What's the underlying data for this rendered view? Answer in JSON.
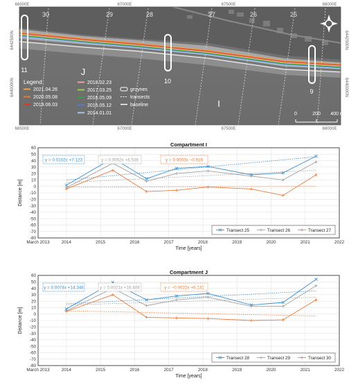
{
  "map": {
    "top_ticks": [
      "66500E",
      "67000E",
      "67500E",
      "68000E"
    ],
    "bottom_ticks": [
      "66500E",
      "67000E",
      "67500E",
      "68000E"
    ],
    "left_ticks": [
      "6442500N",
      "6440000N"
    ],
    "right_ticks": [
      "6442500N",
      "6440000N"
    ],
    "transect_labels": [
      "30",
      "29",
      "28",
      "27",
      "26",
      "25"
    ],
    "groyne_labels": [
      "11",
      "10",
      "9"
    ],
    "compartment_labels": [
      "J",
      "I"
    ],
    "legend_title": "Legend",
    "legend_col1": [
      {
        "label": "2021.04.26",
        "color": "#f0a34a"
      },
      {
        "label": "2020.05.08",
        "color": "#e8793a"
      },
      {
        "label": "2019.06.03",
        "color": "#d6392a"
      }
    ],
    "legend_col2": [
      {
        "label": "2018.02.23",
        "color": "#f0a0a8"
      },
      {
        "label": "2017.03.25",
        "color": "#9bd04a"
      },
      {
        "label": "2016.05.09",
        "color": "#3aa038"
      },
      {
        "label": "2015.05.12",
        "color": "#4f7fd0"
      },
      {
        "label": "2014.01.01",
        "color": "#a7c5ef"
      }
    ],
    "legend_col3": [
      {
        "label": "groynes",
        "kind": "groyne"
      },
      {
        "label": "transects",
        "kind": "transect"
      },
      {
        "label": "baseline",
        "kind": "baseline"
      }
    ],
    "scale_labels": [
      "0",
      "200",
      "400 m"
    ],
    "compass": "compass-icon"
  },
  "chart_data": [
    {
      "type": "line",
      "title": "Compartment I",
      "xlabel": "Time [years]",
      "ylabel": "Distance [m]",
      "xlim": [
        2013.17,
        2022.0
      ],
      "ylim": [
        -80,
        60
      ],
      "xticks": [
        2013.17,
        2014,
        2015,
        2016,
        2017,
        2018,
        2019,
        2020,
        2021,
        2022
      ],
      "xtick_labels": [
        "March 2013",
        "2014",
        "2015",
        "2016",
        "2017",
        "2018",
        "2019",
        "2020",
        "2021",
        "2022"
      ],
      "yticks": [
        -80,
        -70,
        -60,
        -50,
        -40,
        -30,
        -20,
        -10,
        0,
        10,
        20,
        30,
        40,
        50,
        60
      ],
      "grid": true,
      "legend_position": "bottom-right",
      "x": [
        2014.0,
        2015.36,
        2016.35,
        2017.23,
        2018.15,
        2019.42,
        2020.35,
        2021.32
      ],
      "series": [
        {
          "name": "Transect 25",
          "color": "#3a8fd0",
          "marker": "x",
          "values": [
            2,
            44,
            12,
            28,
            31,
            18,
            21,
            47
          ],
          "trend_label": "y = 0.0102x +7.123",
          "trend": [
            10,
            46
          ]
        },
        {
          "name": "Transect 26",
          "color": "#a0a0a0",
          "marker": "+",
          "values": [
            -2,
            36,
            8,
            20,
            24,
            16,
            10,
            38
          ],
          "trend_label": "y = 0.0052x +6.536",
          "trend": [
            6,
            25
          ]
        },
        {
          "name": "Transect 27",
          "color": "#e8793a",
          "marker": "+",
          "values": [
            -4,
            25,
            -8,
            -6,
            -1,
            -4,
            -14,
            18
          ],
          "trend_label": "y = 0.0003x −0.916",
          "trend": [
            -1,
            0
          ]
        }
      ]
    },
    {
      "type": "line",
      "title": "Compartment J",
      "xlabel": "Time [years]",
      "ylabel": "Distance [m]",
      "xlim": [
        2013.17,
        2022.0
      ],
      "ylim": [
        -80,
        60
      ],
      "xticks": [
        2013.17,
        2014,
        2015,
        2016,
        2017,
        2018,
        2019,
        2020,
        2021,
        2022
      ],
      "xtick_labels": [
        "March 2013",
        "2014",
        "2015",
        "2016",
        "2017",
        "2018",
        "2019",
        "2020",
        "2021",
        "2022"
      ],
      "yticks": [
        -80,
        -70,
        -60,
        -50,
        -40,
        -30,
        -20,
        -10,
        0,
        10,
        20,
        30,
        40,
        50,
        60
      ],
      "grid": true,
      "legend_position": "bottom-right",
      "x": [
        2014.0,
        2015.36,
        2016.35,
        2017.23,
        2018.15,
        2019.42,
        2020.35,
        2021.32
      ],
      "series": [
        {
          "name": "Transect 28",
          "color": "#3a8fd0",
          "marker": "x",
          "values": [
            8,
            49,
            22,
            28,
            32,
            14,
            18,
            54
          ],
          "trend_label": "y = 0.0074x +14.348",
          "trend": [
            16,
            36
          ]
        },
        {
          "name": "Transect 29",
          "color": "#a0a0a0",
          "marker": "+",
          "values": [
            5,
            40,
            13,
            22,
            26,
            12,
            12,
            44
          ],
          "trend_label": "y = 0.0021x +16.408",
          "trend": [
            14,
            26
          ]
        },
        {
          "name": "Transect 30",
          "color": "#e8793a",
          "marker": "+",
          "values": [
            4,
            30,
            -5,
            -6,
            -7,
            -10,
            -9,
            22
          ],
          "trend_label": "y = −0.0022x +6.131",
          "trend": [
            5,
            -3
          ]
        }
      ]
    }
  ]
}
